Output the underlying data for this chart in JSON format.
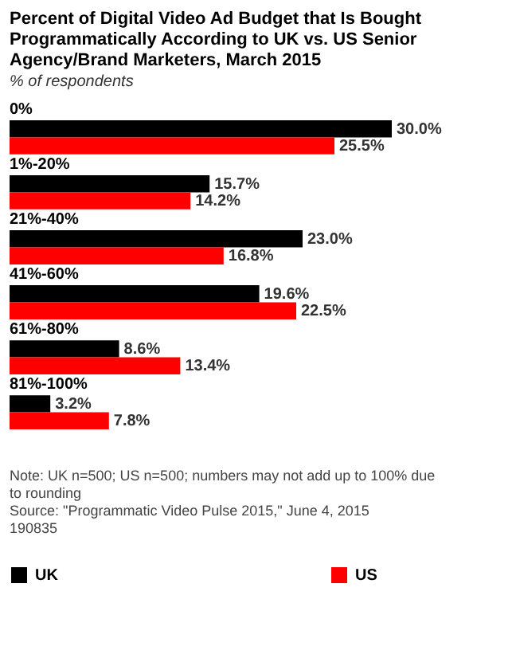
{
  "chart_data": {
    "type": "bar",
    "orientation": "horizontal",
    "title": "Percent of Digital Video Ad Budget that Is Bought Programmatically According to UK vs. US Senior Agency/Brand Marketers, March 2015",
    "subtitle": "% of respondents",
    "categories": [
      "0%",
      "1%-20%",
      "21%-40%",
      "41%-60%",
      "61%-80%",
      "81%-100%"
    ],
    "series": [
      {
        "name": "UK",
        "color": "#000000",
        "values": [
          30.0,
          15.7,
          23.0,
          19.6,
          8.6,
          3.2
        ],
        "value_labels": [
          "30.0%",
          "15.7%",
          "23.0%",
          "19.6%",
          "8.6%",
          "3.2%"
        ]
      },
      {
        "name": "US",
        "color": "#ff0000",
        "values": [
          25.5,
          14.2,
          16.8,
          22.5,
          13.4,
          7.8
        ],
        "value_labels": [
          "25.5%",
          "14.2%",
          "16.8%",
          "22.5%",
          "13.4%",
          "7.8%"
        ]
      }
    ],
    "legend": "bottom",
    "annotations": [
      "Note: UK n=500; US n=500; numbers may not add up to 100% due to rounding",
      "Source: \"Programmatic Video Pulse 2015,\" June 4, 2015",
      "190835"
    ]
  }
}
